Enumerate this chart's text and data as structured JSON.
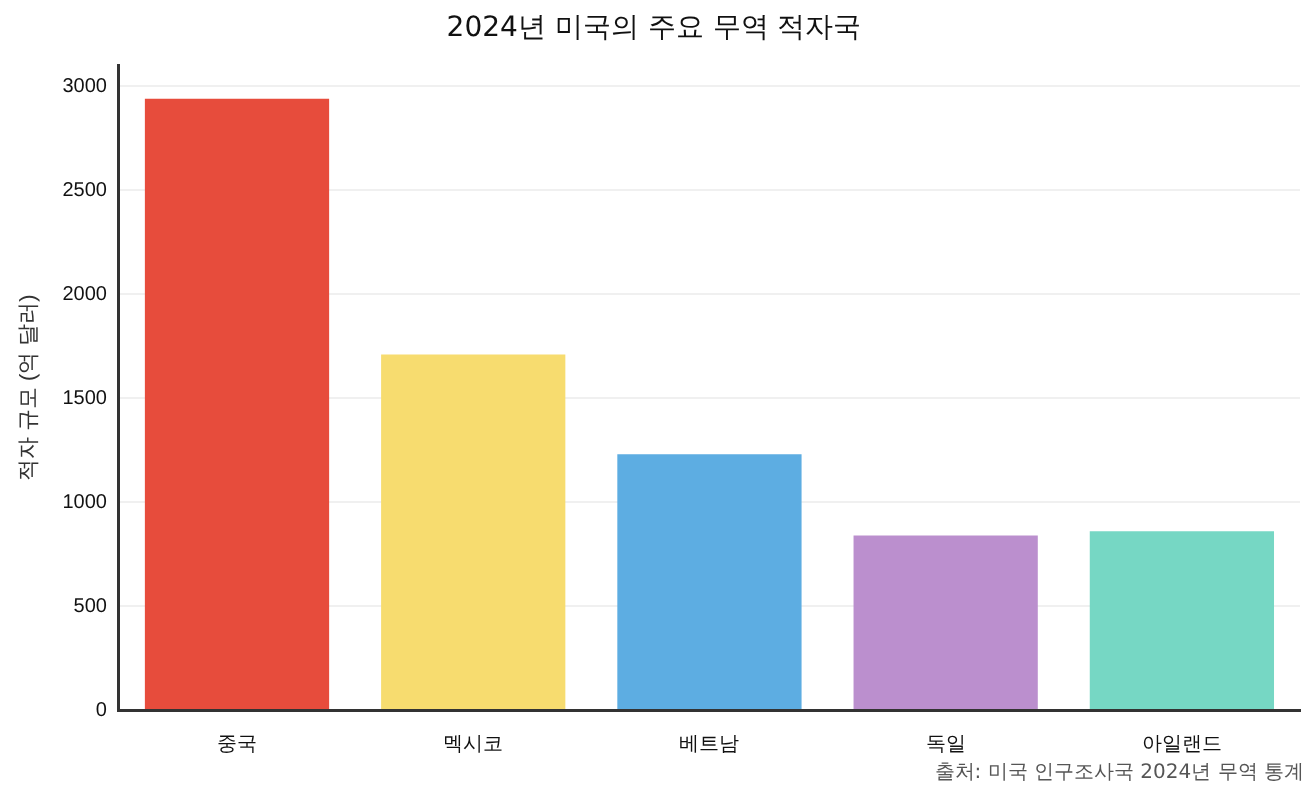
{
  "chart_data": {
    "type": "bar",
    "title": "2024년 미국의 주요 무역 적자국",
    "ylabel": "적자 규모 (억 달러)",
    "categories": [
      "중국",
      "멕시코",
      "베트남",
      "독일",
      "아일랜드"
    ],
    "values": [
      2940,
      1710,
      1230,
      840,
      860
    ],
    "colors": [
      "#e74c3c",
      "#f7dc6f",
      "#5dade2",
      "#bb8fce",
      "#76d7c4"
    ],
    "ylim": [
      0,
      3100
    ],
    "yticks": [
      0,
      500,
      1000,
      1500,
      2000,
      2500,
      3000
    ],
    "grid": "y",
    "annotations": [
      "출처: 미국 인구조사국 2024년 무역 통계"
    ]
  }
}
